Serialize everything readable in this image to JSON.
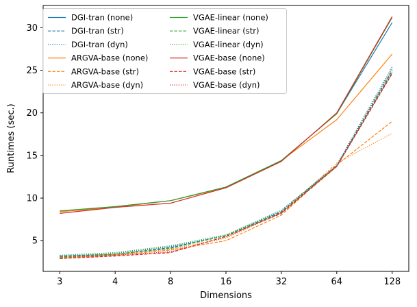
{
  "chart_data": {
    "type": "line",
    "xlabel": "Dimensions",
    "ylabel": "Runtimes (sec.)",
    "x": [
      "3",
      "4",
      "8",
      "16",
      "32",
      "64",
      "128"
    ],
    "ylim": [
      1.4,
      32.6
    ],
    "yticks": [
      5,
      10,
      15,
      20,
      25,
      30
    ],
    "legend_position": "top-left",
    "legend_columns": 2,
    "series": [
      {
        "name": "DGI-tran (none)",
        "color": "#1f77b4",
        "style": "solid",
        "values": [
          8.4,
          9.0,
          9.7,
          11.3,
          14.4,
          19.9,
          30.6
        ]
      },
      {
        "name": "DGI-tran (str)",
        "color": "#1f77b4",
        "style": "dashed",
        "values": [
          3.2,
          3.4,
          4.2,
          5.6,
          8.4,
          13.8,
          25.0
        ]
      },
      {
        "name": "DGI-tran (dyn)",
        "color": "#1f77b4",
        "style": "dotted",
        "values": [
          3.2,
          3.5,
          4.3,
          5.6,
          8.5,
          13.9,
          25.4
        ]
      },
      {
        "name": "ARGVA-base (none)",
        "color": "#ff7f0e",
        "style": "solid",
        "values": [
          8.4,
          8.9,
          9.7,
          11.2,
          14.4,
          19.2,
          26.9
        ]
      },
      {
        "name": "ARGVA-base (str)",
        "color": "#ff7f0e",
        "style": "dashed",
        "values": [
          3.0,
          3.3,
          3.9,
          5.0,
          8.0,
          13.9,
          19.0
        ]
      },
      {
        "name": "ARGVA-base (dyn)",
        "color": "#ff7f0e",
        "style": "dotted",
        "values": [
          3.1,
          3.4,
          4.0,
          5.3,
          8.3,
          14.1,
          17.6
        ]
      },
      {
        "name": "VGAE-linear (none)",
        "color": "#2ca02c",
        "style": "solid",
        "values": [
          8.5,
          9.0,
          9.7,
          11.3,
          14.4,
          19.9,
          31.2
        ]
      },
      {
        "name": "VGAE-linear (str)",
        "color": "#2ca02c",
        "style": "dashed",
        "values": [
          3.1,
          3.4,
          4.1,
          5.6,
          8.3,
          13.7,
          24.7
        ]
      },
      {
        "name": "VGAE-linear (dyn)",
        "color": "#2ca02c",
        "style": "dotted",
        "values": [
          3.3,
          3.6,
          4.4,
          5.7,
          8.6,
          13.8,
          25.2
        ]
      },
      {
        "name": "VGAE-base (none)",
        "color": "#d62728",
        "style": "solid",
        "values": [
          8.2,
          8.9,
          9.4,
          11.2,
          14.3,
          20.0,
          31.3
        ]
      },
      {
        "name": "VGAE-base (str)",
        "color": "#d62728",
        "style": "dashed",
        "values": [
          2.9,
          3.2,
          3.6,
          5.5,
          8.2,
          13.7,
          24.6
        ]
      },
      {
        "name": "VGAE-base (dyn)",
        "color": "#d62728",
        "style": "dotted",
        "values": [
          3.0,
          3.3,
          3.7,
          5.4,
          8.3,
          13.8,
          24.8
        ]
      }
    ]
  }
}
